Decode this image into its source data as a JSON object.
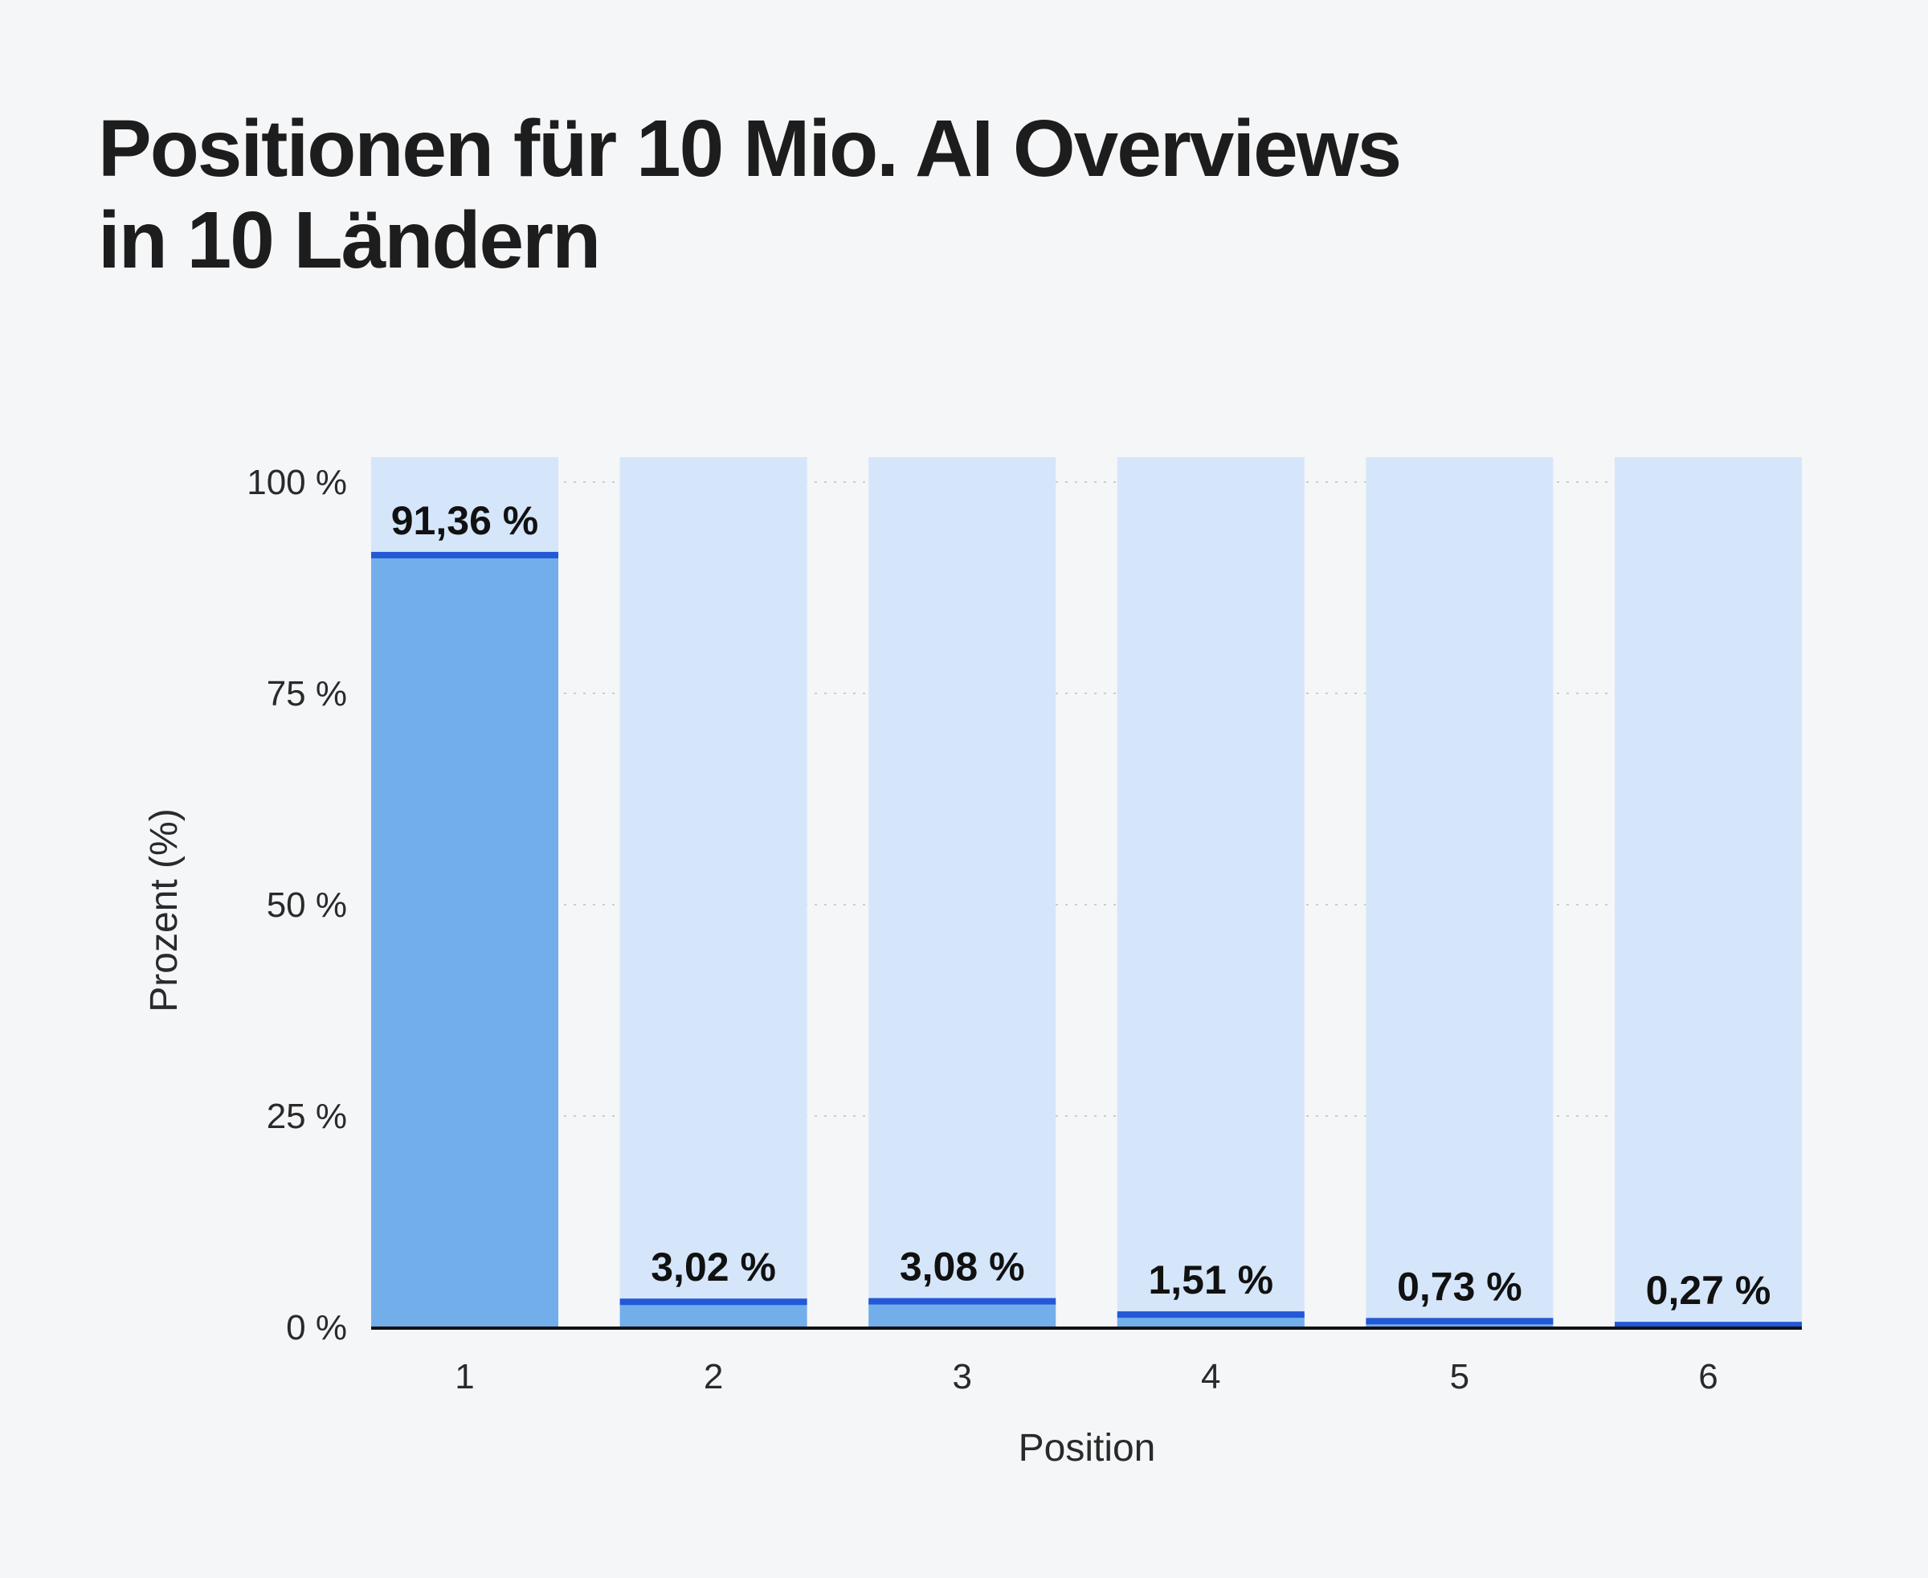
{
  "title": {
    "line1": "Positionen für 10 Mio. AI Overviews",
    "line2": "in 10 Ländern"
  },
  "colors": {
    "background": "#f5f6f8",
    "bar_track": "#d6e6fa",
    "bar_fill": "#72aeea",
    "bar_cap": "#2358d6",
    "axis": "#111111",
    "grid": "#c9ccd2"
  },
  "chart_data": {
    "type": "bar",
    "categories": [
      "1",
      "2",
      "3",
      "4",
      "5",
      "6"
    ],
    "values": [
      91.36,
      3.02,
      3.08,
      1.51,
      0.73,
      0.27
    ],
    "value_labels": [
      "91,36 %",
      "3,02 %",
      "3,08 %",
      "1,51 %",
      "0,73 %",
      "0,27 %"
    ],
    "xlabel": "Position",
    "ylabel": "Prozent (%)",
    "ylim": [
      0,
      100
    ],
    "yticks": [
      0,
      25,
      50,
      75,
      100
    ],
    "ytick_labels": [
      "0 %",
      "25 %",
      "50 %",
      "75 %",
      "100 %"
    ],
    "grid": true
  }
}
